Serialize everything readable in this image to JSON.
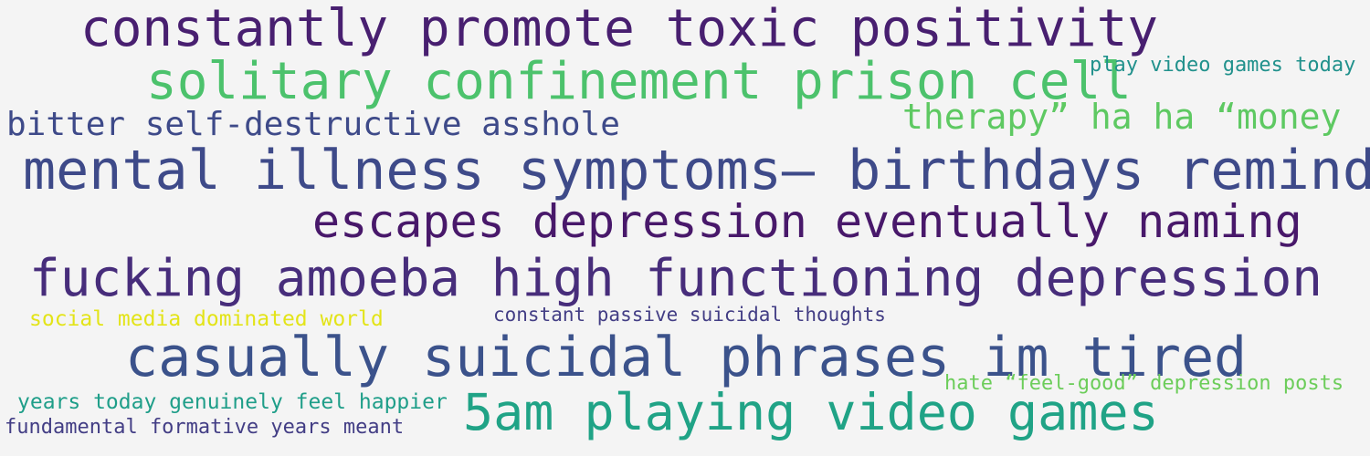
{
  "phrases": [
    {
      "text": "constantly promote toxic positivity",
      "color": "#481f70"
    },
    {
      "text": "solitary confinement prison cell",
      "color": "#4cc26c"
    },
    {
      "text": "play video games today",
      "color": "#21918c"
    },
    {
      "text": "bitter self-destructive asshole",
      "color": "#3e4a89"
    },
    {
      "text": "therapy” ha ha “money",
      "color": "#5ec962"
    },
    {
      "text": "mental illness symptoms— birthdays remind",
      "color": "#3e4a89"
    },
    {
      "text": "escapes depression eventually naming",
      "color": "#48186a"
    },
    {
      "text": "fucking amoeba high functioning depression",
      "color": "#472d7b"
    },
    {
      "text": "social media dominated world",
      "color": "#e3e418"
    },
    {
      "text": "constant passive suicidal thoughts",
      "color": "#433e85"
    },
    {
      "text": "casually suicidal phrases im tired",
      "color": "#3b528b"
    },
    {
      "text": "hate “feel-good” depression posts",
      "color": "#6ccd5a"
    },
    {
      "text": "years today genuinely feel happier",
      "color": "#1f9e89"
    },
    {
      "text": "5am playing video games",
      "color": "#20a386"
    },
    {
      "text": "fundamental formative years meant",
      "color": "#433e85"
    }
  ]
}
